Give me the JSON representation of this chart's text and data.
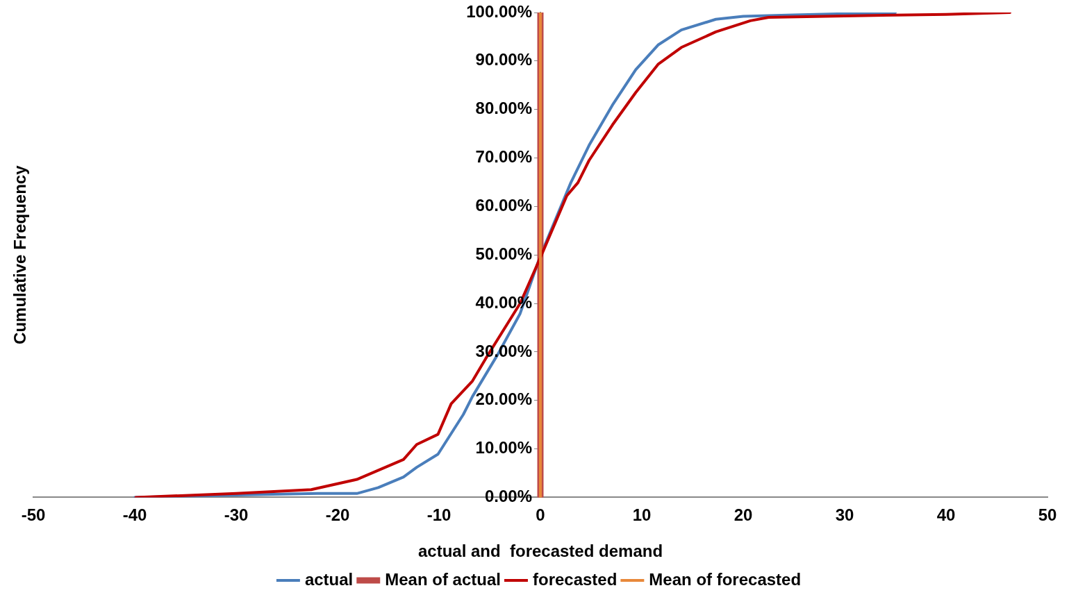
{
  "chart_data": {
    "type": "line",
    "xlabel": "actual and  forecasted demand",
    "ylabel": "Cumulative Frequency",
    "xlim": [
      -50,
      50
    ],
    "xticks": [
      -50,
      -40,
      -30,
      -20,
      -10,
      0,
      10,
      20,
      30,
      40,
      50
    ],
    "ylim": [
      0,
      100
    ],
    "yticks": [
      {
        "value": 0,
        "label": "0.00%"
      },
      {
        "value": 10,
        "label": "10.00%"
      },
      {
        "value": 20,
        "label": "20.00%"
      },
      {
        "value": 30,
        "label": "30.00%"
      },
      {
        "value": 40,
        "label": "40.00%"
      },
      {
        "value": 50,
        "label": "50.00%"
      },
      {
        "value": 60,
        "label": "60.00%"
      },
      {
        "value": 70,
        "label": "70.00%"
      },
      {
        "value": 80,
        "label": "80.00%"
      },
      {
        "value": 90,
        "label": "90.00%"
      },
      {
        "value": 100,
        "label": "100.00%"
      }
    ],
    "grid": false,
    "legend": "bottom",
    "marker": "none",
    "line_style": "solid",
    "series": [
      {
        "name": "actual",
        "color": "#4a7ebb",
        "x": [
          -40,
          -30,
          -22,
          -20.3,
          -18.1,
          -16,
          -13.5,
          -12.2,
          -10.1,
          -7.6,
          -6.7,
          -4.2,
          -2,
          -0.1,
          3,
          4.8,
          7.1,
          9.4,
          11.6,
          13.9,
          17.3,
          20,
          25,
          35
        ],
        "values": [
          0,
          0.5,
          0.8,
          0.8,
          0.8,
          2,
          4.2,
          6.2,
          8.9,
          17.1,
          20.8,
          29.5,
          37.9,
          49.3,
          64.9,
          72.6,
          80.9,
          88.2,
          93.3,
          96.4,
          98.6,
          99.2,
          99.5,
          100
        ]
      },
      {
        "name": "Mean of actual",
        "color": "#be4b48",
        "x": [
          0,
          0
        ],
        "values": [
          0,
          100
        ]
      },
      {
        "name": "forecasted",
        "color": "#c00000",
        "x": [
          -39.9,
          -30,
          -22.6,
          -18.1,
          -13.5,
          -12.2,
          -10.1,
          -8.8,
          -6.7,
          -5.4,
          -2,
          0.07,
          2.6,
          3.7,
          4.8,
          7.1,
          9.4,
          11.6,
          13.9,
          17.3,
          20.7,
          22.5,
          30,
          40,
          46.3
        ],
        "values": [
          0,
          0.8,
          1.6,
          3.7,
          7.8,
          10.9,
          13,
          19.3,
          24,
          28.6,
          40,
          49.8,
          62.2,
          64.9,
          69.5,
          76.8,
          83.5,
          89.3,
          92.8,
          96,
          98.3,
          99,
          99.3,
          99.6,
          100
        ]
      },
      {
        "name": "Mean of forecasted",
        "color": "#e8883a",
        "x": [
          0,
          0
        ],
        "values": [
          0,
          100
        ]
      }
    ]
  }
}
